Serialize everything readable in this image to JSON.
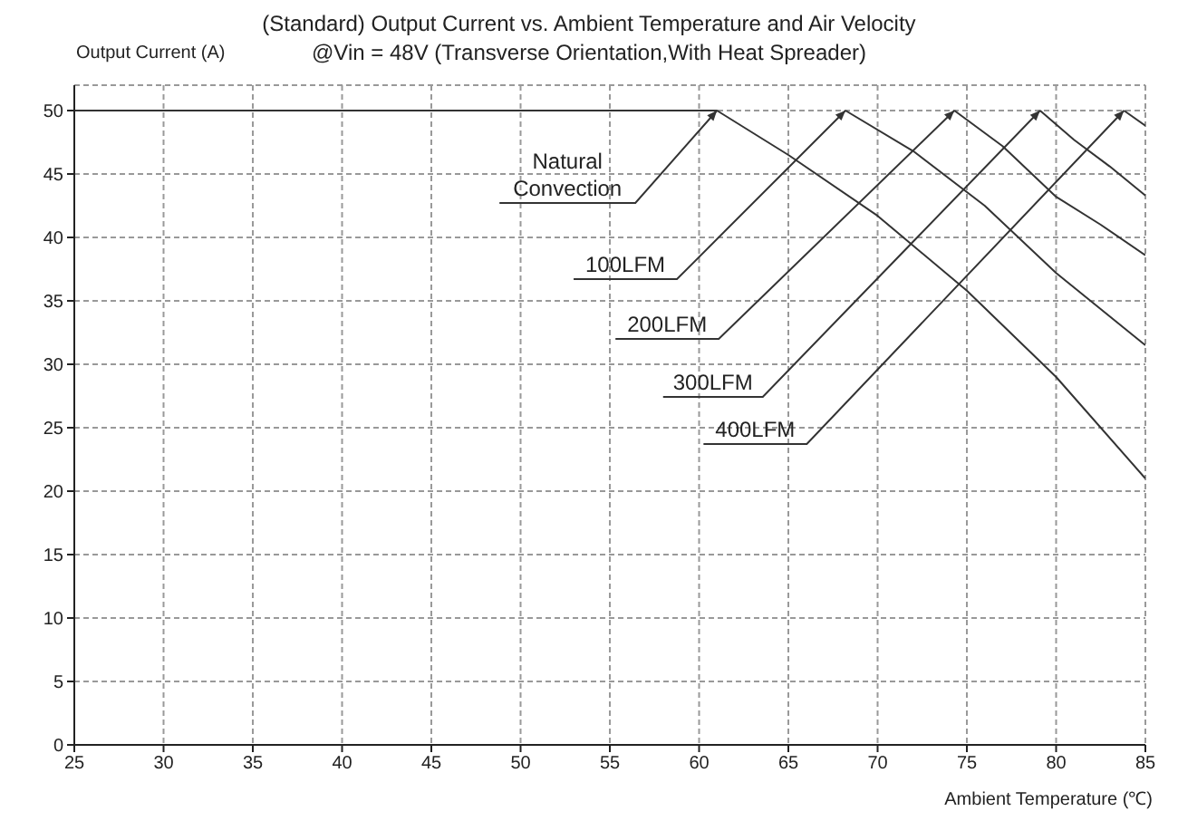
{
  "chart_data": {
    "type": "line",
    "title": "(Standard)  Output Current vs. Ambient Temperature and Air Velocity",
    "subtitle": "@Vin = 48V (Transverse  Orientation,With Heat Spreader)",
    "xlabel": "Ambient Temperature (℃)",
    "ylabel": "Output Current (A)",
    "series": [
      {
        "color": "#333333",
        "x": [
          25,
          61,
          65,
          70,
          75,
          80,
          85
        ],
        "values": [
          50,
          50,
          46.5,
          41.7,
          35.8,
          29,
          21
        ]
      },
      {
        "color": "#333333",
        "x": [
          68.2,
          72,
          76,
          80,
          85
        ],
        "values": [
          50,
          46.8,
          42.5,
          37.2,
          31.5
        ]
      },
      {
        "color": "#333333",
        "x": [
          74.3,
          77,
          80,
          82.5,
          85
        ],
        "values": [
          50,
          47.2,
          43.2,
          41,
          38.6
        ]
      },
      {
        "color": "#333333",
        "x": [
          79.1,
          81,
          83,
          85
        ],
        "values": [
          50,
          47.7,
          45.6,
          43.3
        ]
      },
      {
        "color": "#333333",
        "x": [
          83.8,
          85
        ],
        "values": [
          50,
          48.8
        ]
      }
    ],
    "annotations": [
      {
        "text": "Natural\nConvection",
        "x": 61,
        "y": 50
      },
      {
        "text": "100LFM",
        "x": 68.2,
        "y": 50
      },
      {
        "text": "200LFM",
        "x": 74.3,
        "y": 50
      },
      {
        "text": "300LFM",
        "x": 79.1,
        "y": 50
      },
      {
        "text": "400LFM",
        "x": 83.8,
        "y": 50
      }
    ],
    "xlim": [
      25,
      85
    ],
    "xticks": [
      25,
      30,
      35,
      40,
      45,
      50,
      55,
      60,
      65,
      70,
      75,
      80,
      85
    ],
    "ylim": [
      0,
      52
    ],
    "yticks": [
      0,
      5,
      10,
      15,
      20,
      25,
      30,
      35,
      40,
      45,
      50
    ],
    "grid": true,
    "marker": "none",
    "line_style": "solid"
  }
}
